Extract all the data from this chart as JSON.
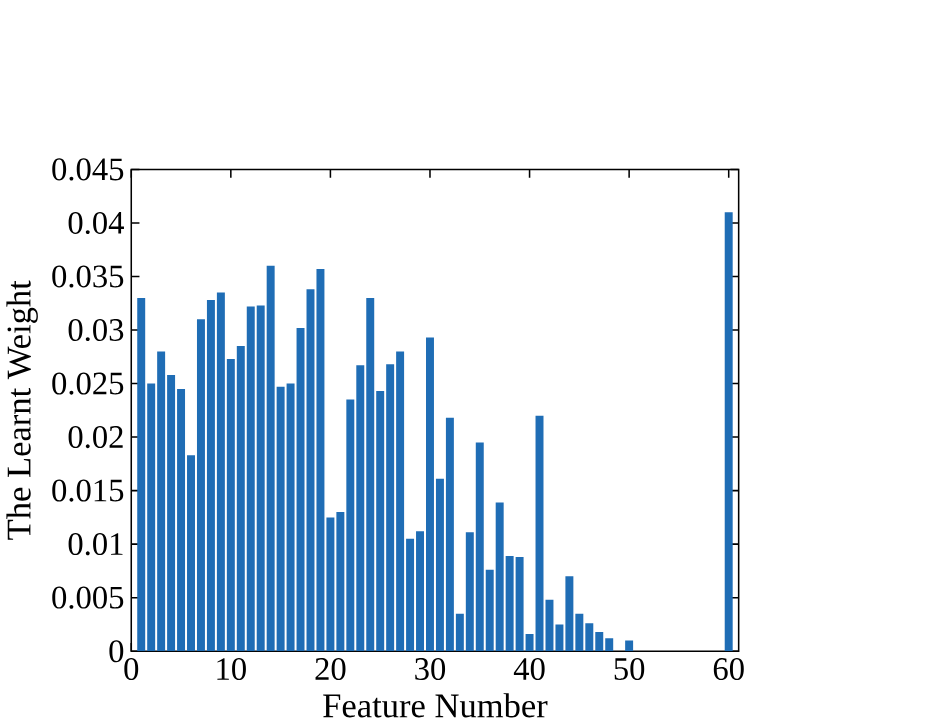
{
  "chart_data": {
    "type": "bar",
    "xlabel": "Feature Number",
    "ylabel": "The Learnt Weight",
    "color": "#1f6db5",
    "x": [
      1,
      2,
      3,
      4,
      5,
      6,
      7,
      8,
      9,
      10,
      11,
      12,
      13,
      14,
      15,
      16,
      17,
      18,
      19,
      20,
      21,
      22,
      23,
      24,
      25,
      26,
      27,
      28,
      29,
      30,
      31,
      32,
      33,
      34,
      35,
      36,
      37,
      38,
      39,
      40,
      41,
      42,
      43,
      44,
      45,
      46,
      47,
      48,
      49,
      50,
      51,
      52,
      53,
      54,
      55,
      56,
      57,
      58,
      59,
      60
    ],
    "values": [
      0.033,
      0.025,
      0.028,
      0.0258,
      0.0245,
      0.0183,
      0.031,
      0.0328,
      0.0335,
      0.0273,
      0.0285,
      0.0322,
      0.0323,
      0.036,
      0.0247,
      0.025,
      0.0302,
      0.0338,
      0.0357,
      0.0125,
      0.013,
      0.0235,
      0.0267,
      0.033,
      0.0243,
      0.0268,
      0.028,
      0.0105,
      0.0112,
      0.0293,
      0.0161,
      0.0218,
      0.0035,
      0.0111,
      0.0195,
      0.0076,
      0.0139,
      0.0089,
      0.0088,
      0.0016,
      0.022,
      0.0048,
      0.0025,
      0.007,
      0.0035,
      0.0026,
      0.0018,
      0.0012,
      0,
      0.001,
      0,
      0,
      0,
      0,
      0,
      0,
      0,
      0,
      0,
      0.041
    ],
    "xlim": [
      0,
      61
    ],
    "xticks": [
      0,
      10,
      20,
      30,
      40,
      50,
      60
    ],
    "ylim": [
      0,
      0.045
    ],
    "yticks": [
      0,
      0.005,
      0.01,
      0.015,
      0.02,
      0.025,
      0.03,
      0.035,
      0.04,
      0.045
    ]
  }
}
